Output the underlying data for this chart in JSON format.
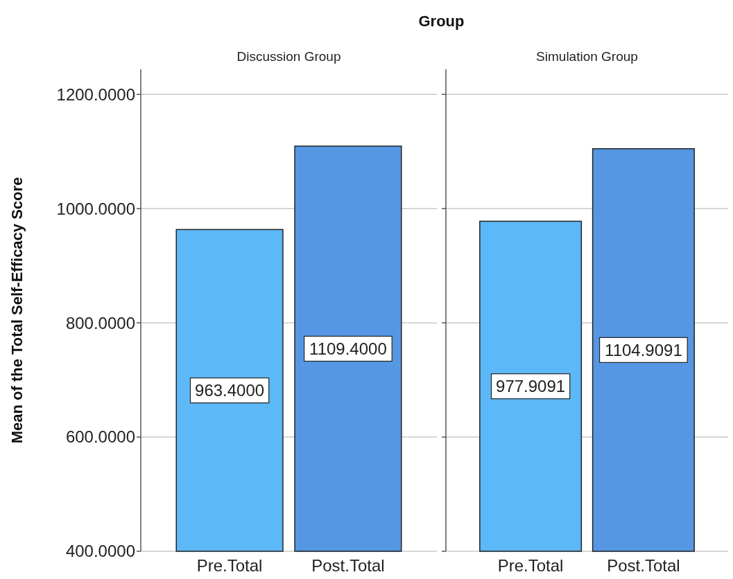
{
  "chart_data": [
    {
      "type": "bar",
      "title": "Group",
      "subtitle": "Discussion Group",
      "ylabel": "Mean of the Total Self-Efficacy Score",
      "categories": [
        "Pre.Total",
        "Post.Total"
      ],
      "values": [
        963.4,
        1109.4
      ],
      "colors": [
        "#5cb8f6",
        "#5597e3"
      ],
      "value_labels": [
        "963.4000",
        "1109.4000"
      ],
      "ylim": [
        400,
        1244
      ],
      "yticks": [
        {
          "value": 400,
          "label": "400.0000"
        },
        {
          "value": 600,
          "label": "600.0000"
        },
        {
          "value": 800,
          "label": "800.0000"
        },
        {
          "value": 1000,
          "label": "1000.0000"
        },
        {
          "value": 1200,
          "label": "1200.0000"
        }
      ],
      "grid": "y"
    },
    {
      "type": "bar",
      "subtitle": "Simulation Group",
      "categories": [
        "Pre.Total",
        "Post.Total"
      ],
      "values": [
        977.9091,
        1104.9091
      ],
      "colors": [
        "#5cb8f6",
        "#5597e3"
      ],
      "value_labels": [
        "977.9091",
        "1104.9091"
      ],
      "ylim": [
        400,
        1244
      ],
      "yticks": [
        {
          "value": 400,
          "label": null
        },
        {
          "value": 600,
          "label": null
        },
        {
          "value": 800,
          "label": null
        },
        {
          "value": 1000,
          "label": null
        },
        {
          "value": 1200,
          "label": null
        }
      ],
      "grid": "y",
      "tick_labels": "x"
    }
  ]
}
